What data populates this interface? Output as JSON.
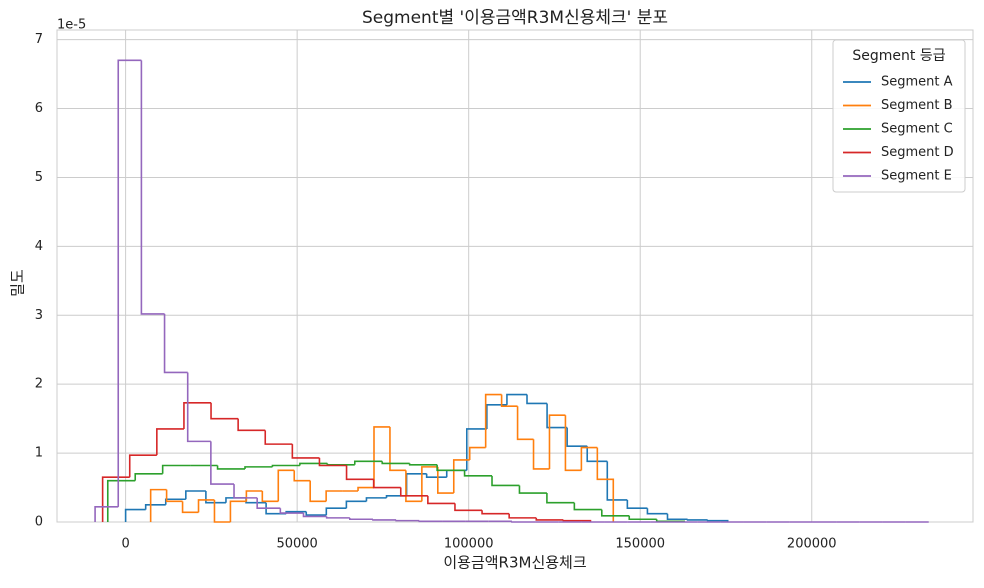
{
  "chart_data": {
    "type": "step-histogram",
    "title": "Segment별 '이용금액R3M신용체크' 분포",
    "xlabel": "이용금액R3M신용체크",
    "ylabel": "밀도",
    "y_offset_label": "1e-5",
    "xlim": [
      -20000,
      247000
    ],
    "ylim": [
      0,
      7.14
    ],
    "xticks": [
      0,
      50000,
      100000,
      150000,
      200000
    ],
    "yticks": [
      0,
      1,
      2,
      3,
      4,
      5,
      6,
      7
    ],
    "grid": true,
    "legend_position": "upper right",
    "legend_title": "Segment 등급",
    "series": [
      {
        "name": "Segment A",
        "color": "#1f77b4",
        "bins": [
          0,
          5850,
          11700,
          17550,
          23400,
          29250,
          35100,
          40950,
          46800,
          52650,
          58500,
          64350,
          70200,
          76050,
          81900,
          87750,
          93600,
          99450,
          105300,
          111150,
          117000,
          122850,
          128700,
          134550,
          140400,
          146250,
          152100,
          157950,
          163800,
          169650,
          175500
        ],
        "values": [
          0.18,
          0.25,
          0.33,
          0.45,
          0.28,
          0.35,
          0.28,
          0.12,
          0.15,
          0.1,
          0.2,
          0.3,
          0.35,
          0.38,
          0.7,
          0.65,
          0.75,
          1.35,
          1.7,
          1.85,
          1.72,
          1.37,
          1.1,
          0.88,
          0.32,
          0.2,
          0.12,
          0.04,
          0.03,
          0.02
        ]
      },
      {
        "name": "Segment B",
        "color": "#ff7f0e",
        "bins": [
          7300,
          11950,
          16600,
          21250,
          25900,
          30550,
          35200,
          39850,
          44500,
          49150,
          53800,
          58450,
          63100,
          67750,
          72400,
          77050,
          81700,
          86350,
          91000,
          95650,
          100300,
          104950,
          109600,
          114250,
          118900,
          123550,
          128200,
          132850,
          137500,
          142150
        ],
        "values": [
          0.47,
          0.3,
          0.14,
          0.32,
          0.0,
          0.3,
          0.45,
          0.3,
          0.75,
          0.6,
          0.3,
          0.45,
          0.45,
          0.5,
          1.38,
          0.75,
          0.3,
          0.8,
          0.42,
          0.9,
          1.08,
          1.85,
          1.68,
          1.2,
          0.77,
          1.55,
          0.75,
          1.08,
          0.62
        ]
      },
      {
        "name": "Segment C",
        "color": "#2ca02c",
        "bins": [
          -5200,
          2800,
          10800,
          18800,
          26800,
          34800,
          42800,
          50800,
          58800,
          66800,
          74800,
          82800,
          90800,
          98800,
          106800,
          114800,
          122800,
          130800,
          138800,
          146800,
          154800,
          162800
        ],
        "values": [
          0.6,
          0.7,
          0.82,
          0.82,
          0.77,
          0.8,
          0.82,
          0.85,
          0.83,
          0.88,
          0.85,
          0.83,
          0.75,
          0.67,
          0.53,
          0.42,
          0.28,
          0.18,
          0.09,
          0.04,
          0.01
        ]
      },
      {
        "name": "Segment D",
        "color": "#d62728",
        "bins": [
          -6700,
          1200,
          9100,
          17000,
          24900,
          32800,
          40700,
          48600,
          56500,
          64400,
          72300,
          80200,
          88100,
          96000,
          103900,
          111800,
          119700,
          127600,
          135500
        ],
        "values": [
          0.65,
          0.97,
          1.35,
          1.73,
          1.5,
          1.33,
          1.13,
          0.93,
          0.82,
          0.62,
          0.5,
          0.38,
          0.27,
          0.17,
          0.12,
          0.06,
          0.03,
          0.02
        ]
      },
      {
        "name": "Segment E",
        "color": "#9467bd",
        "bins": [
          -8900,
          -2150,
          4600,
          11350,
          18100,
          24850,
          31600,
          38350,
          45100,
          51850,
          58600,
          65350,
          72100,
          78850,
          85600,
          92350,
          99100,
          105850,
          112600,
          119350,
          126100,
          132850,
          139600,
          146350,
          153100,
          159850,
          166600,
          173350,
          180100,
          186850,
          193600,
          200350,
          207100,
          213850,
          220600,
          227350,
          234100
        ],
        "values": [
          0.22,
          6.7,
          3.02,
          2.17,
          1.17,
          0.55,
          0.35,
          0.2,
          0.13,
          0.08,
          0.06,
          0.04,
          0.03,
          0.02,
          0.01,
          0.01,
          0.01,
          0.01,
          0,
          0,
          0,
          0,
          0,
          0,
          0,
          0,
          0,
          0,
          0,
          0,
          0,
          0,
          0,
          0,
          0,
          0
        ]
      }
    ]
  }
}
